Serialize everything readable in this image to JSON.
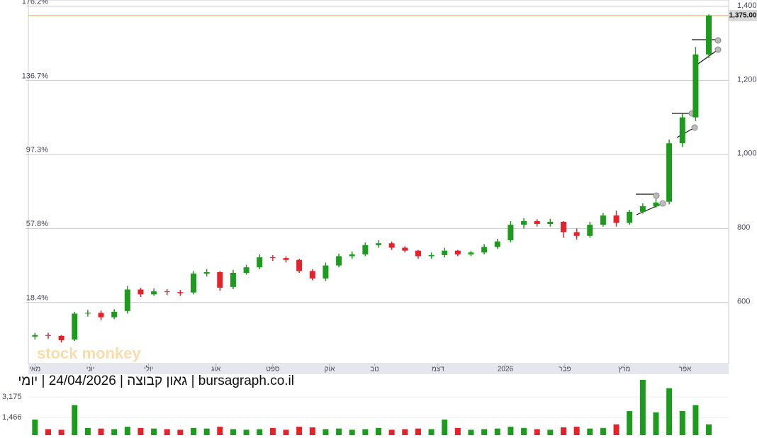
{
  "chart_data": [
    {
      "type": "candlestick",
      "subtitle": "bursagraph.co.il | גאון קבוצה | 24/04/2026 | יומי",
      "watermark": "stock monkey",
      "open": [
        508,
        512,
        510,
        500,
        570,
        572,
        560,
        577,
        635,
        622,
        630,
        628,
        627,
        678,
        682,
        642,
        680,
        695,
        722,
        720,
        715,
        685,
        665,
        700,
        725,
        730,
        755,
        760,
        748,
        740,
        725,
        728,
        740,
        730,
        735,
        750,
        768,
        810,
        820,
        812,
        818,
        790,
        780,
        810,
        835,
        815,
        845,
        860,
        872,
        1030,
        1100,
        1270
      ],
      "high": [
        518,
        518,
        512,
        575,
        580,
        578,
        582,
        645,
        640,
        638,
        636,
        634,
        685,
        690,
        685,
        688,
        702,
        730,
        728,
        725,
        718,
        690,
        708,
        732,
        738,
        762,
        768,
        765,
        752,
        742,
        735,
        748,
        742,
        740,
        758,
        772,
        820,
        828,
        825,
        826,
        820,
        800,
        818,
        842,
        848,
        850,
        868,
        880,
        1040,
        1110,
        1290,
        1378
      ],
      "low": [
        500,
        502,
        492,
        496,
        562,
        552,
        555,
        570,
        615,
        618,
        620,
        618,
        622,
        670,
        632,
        636,
        675,
        690,
        712,
        708,
        680,
        660,
        658,
        695,
        718,
        725,
        748,
        742,
        735,
        718,
        718,
        722,
        725,
        725,
        730,
        745,
        762,
        800,
        805,
        805,
        775,
        770,
        775,
        805,
        805,
        810,
        840,
        855,
        865,
        1020,
        1090,
        1260
      ],
      "close": [
        512,
        510,
        498,
        570,
        572,
        560,
        575,
        635,
        622,
        630,
        628,
        625,
        678,
        682,
        640,
        680,
        695,
        722,
        720,
        715,
        685,
        665,
        700,
        725,
        730,
        755,
        760,
        748,
        740,
        725,
        728,
        740,
        730,
        735,
        750,
        765,
        810,
        820,
        812,
        818,
        790,
        780,
        810,
        835,
        815,
        845,
        860,
        870,
        1030,
        1100,
        1270,
        1375
      ],
      "up_color": "#1e9a1e",
      "down_color": "#e3222b",
      "xlim": [
        -0.5,
        52.5
      ],
      "xticks": [
        {
          "value": 0,
          "label": "מאי"
        },
        {
          "value": 4.2,
          "label": "יוני"
        },
        {
          "value": 8.6,
          "label": "יולי"
        },
        {
          "value": 13.7,
          "label": "אוג"
        },
        {
          "value": 18,
          "label": "ספט"
        },
        {
          "value": 22.3,
          "label": "אוק"
        },
        {
          "value": 25.7,
          "label": "נוב"
        },
        {
          "value": 30.5,
          "label": "דצמ"
        },
        {
          "value": 35.6,
          "label": "2026"
        },
        {
          "value": 40.1,
          "label": "פבר"
        },
        {
          "value": 44.6,
          "label": "מרץ"
        },
        {
          "value": 49.2,
          "label": "אפר"
        }
      ],
      "ylim": [
        435,
        1417
      ],
      "yticks": [
        {
          "value": 1400,
          "label": "1,400"
        },
        {
          "value": 1200,
          "label": "1,200"
        },
        {
          "value": 1000,
          "label": "1,000"
        },
        800,
        600
      ],
      "y2lim": [
        -14.2,
        179.5
      ],
      "y2ticks": [
        {
          "value": 176.2,
          "label": "176.2%"
        },
        {
          "value": 136.7,
          "label": "136.7%"
        },
        {
          "value": 97.3,
          "label": "97.3%"
        },
        {
          "value": 57.8,
          "label": "57.8%"
        },
        {
          "value": 18.4,
          "label": "18.4%"
        }
      ],
      "last_price": {
        "value": 1375,
        "label": "1,375.00"
      },
      "last_price_color": "#d9a441",
      "grid": true
    },
    {
      "type": "bar",
      "values": [
        1300,
        500,
        450,
        2500,
        600,
        550,
        500,
        700,
        600,
        550,
        500,
        450,
        600,
        550,
        700,
        500,
        450,
        500,
        600,
        450,
        700,
        650,
        500,
        550,
        450,
        500,
        600,
        450,
        500,
        550,
        500,
        1300,
        600,
        450,
        500,
        550,
        700,
        600,
        500,
        450,
        650,
        700,
        550,
        600,
        900,
        2000,
        4600,
        1900,
        3900,
        2000,
        2500,
        900
      ],
      "ylim": [
        0,
        4830
      ],
      "yticks": [
        {
          "value": 1466,
          "label": "1,466"
        },
        {
          "value": 3175,
          "label": "3,175"
        }
      ],
      "grid": true
    }
  ]
}
